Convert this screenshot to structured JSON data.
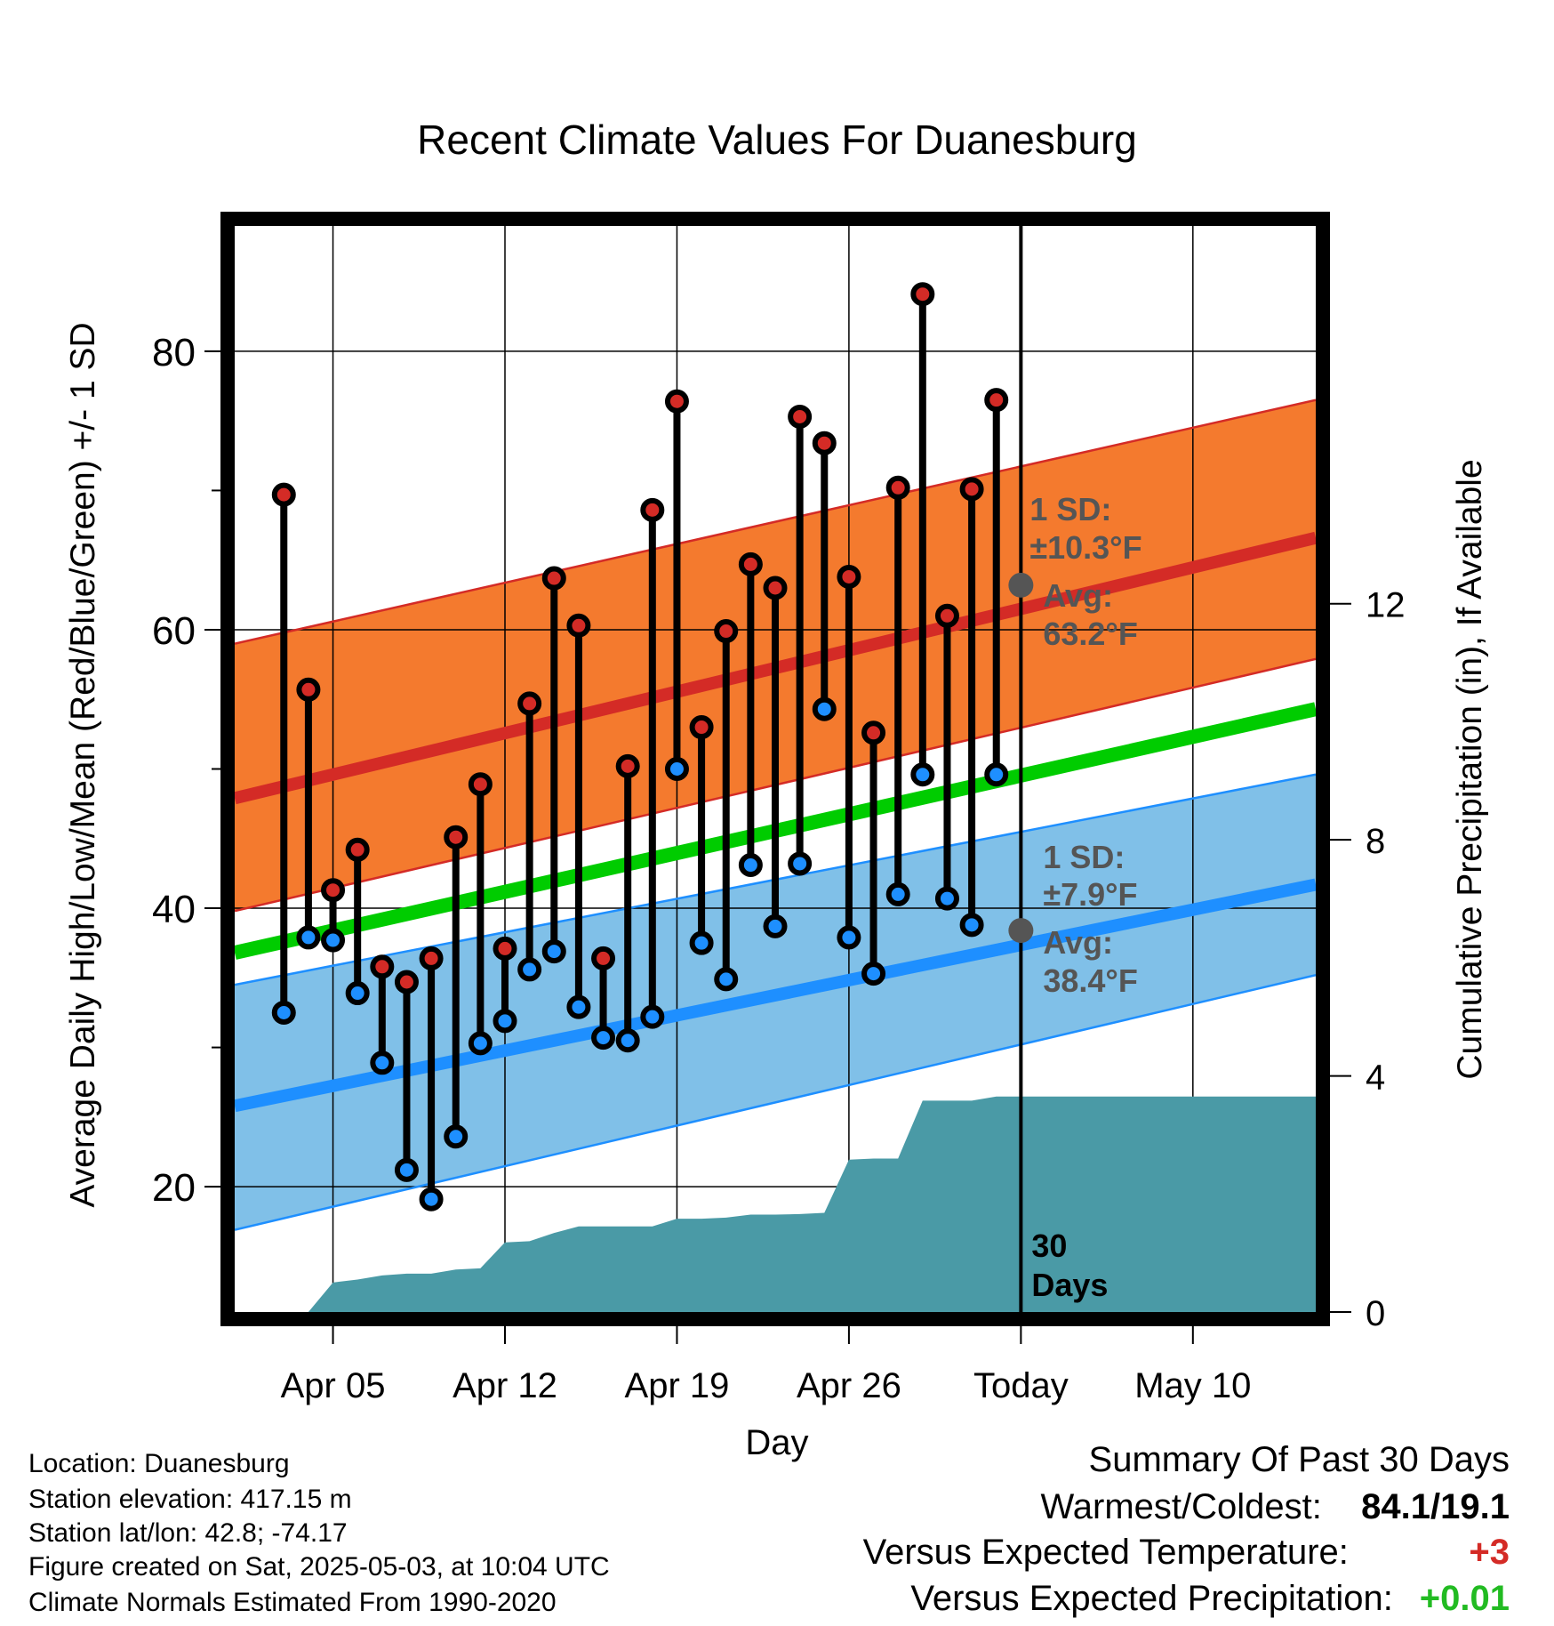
{
  "chart_data": {
    "type": "line",
    "title": "Recent Climate Values For Duanesburg",
    "xlabel": "Day",
    "ylabel_left": "Average Daily High/Low/Mean (Red/Blue/Green) +/- 1 SD",
    "ylabel_right": "Cumulative Precipitation (in), If Available",
    "x_range": [
      "2025-04-01",
      "2025-05-15"
    ],
    "ylim_left": [
      11,
      89
    ],
    "ylim_right": [
      0,
      18.4
    ],
    "x_ticks": [
      {
        "date": "2025-04-05",
        "label": "Apr 05"
      },
      {
        "date": "2025-04-12",
        "label": "Apr 12"
      },
      {
        "date": "2025-04-19",
        "label": "Apr 19"
      },
      {
        "date": "2025-04-26",
        "label": "Apr 26"
      },
      {
        "date": "2025-05-03",
        "label": "Today"
      },
      {
        "date": "2025-05-10",
        "label": "May 10"
      }
    ],
    "y_left_ticks": [
      20,
      40,
      60,
      80
    ],
    "y_left_minor_ticks": [
      30,
      50,
      70
    ],
    "y_right_ticks": [
      0,
      4,
      8,
      12
    ],
    "grid": true,
    "dates": [
      "2025-04-03",
      "2025-04-04",
      "2025-04-05",
      "2025-04-06",
      "2025-04-07",
      "2025-04-08",
      "2025-04-09",
      "2025-04-10",
      "2025-04-11",
      "2025-04-12",
      "2025-04-13",
      "2025-04-14",
      "2025-04-15",
      "2025-04-16",
      "2025-04-17",
      "2025-04-18",
      "2025-04-19",
      "2025-04-20",
      "2025-04-21",
      "2025-04-22",
      "2025-04-23",
      "2025-04-24",
      "2025-04-25",
      "2025-04-26",
      "2025-04-27",
      "2025-04-28",
      "2025-04-29",
      "2025-04-30",
      "2025-05-01",
      "2025-05-02"
    ],
    "highs": [
      69.7,
      55.7,
      41.3,
      44.2,
      35.8,
      34.7,
      36.4,
      45.1,
      48.9,
      37.1,
      54.7,
      63.7,
      60.3,
      36.4,
      50.2,
      68.6,
      76.4,
      53.0,
      59.9,
      64.7,
      63.0,
      75.3,
      73.4,
      63.8,
      52.6,
      70.2,
      84.1,
      61.0,
      70.1,
      76.5
    ],
    "lows": [
      32.5,
      37.9,
      37.7,
      33.9,
      28.9,
      21.2,
      19.1,
      23.6,
      30.3,
      31.9,
      35.6,
      36.9,
      32.9,
      30.7,
      30.5,
      32.2,
      50.0,
      37.5,
      34.9,
      43.1,
      38.7,
      43.2,
      54.3,
      37.9,
      35.3,
      41.0,
      49.6,
      40.7,
      38.8,
      49.6
    ],
    "high_markers": [
      "red",
      "red",
      "red",
      "red",
      "red",
      "red",
      "red",
      "red",
      "red",
      "red",
      "red",
      "red",
      "red",
      "red",
      "red",
      "red",
      "red",
      "red",
      "red",
      "red",
      "red",
      "red",
      "red",
      "red",
      "red",
      "red",
      "red",
      "red",
      "red",
      "red"
    ],
    "low_markers": [
      "blue",
      "blue",
      "blue",
      "blue",
      "blue",
      "blue",
      "blue",
      "blue",
      "blue",
      "blue",
      "blue",
      "blue",
      "blue",
      "blue",
      "blue",
      "blue",
      "blue",
      "blue",
      "blue",
      "blue",
      "blue",
      "blue",
      "blue",
      "blue",
      "blue",
      "blue",
      "blue",
      "blue",
      "blue",
      "blue"
    ],
    "normals": {
      "dates": [
        "2025-04-01",
        "2025-05-15"
      ],
      "high_avg": [
        47.9,
        66.6
      ],
      "high_upper": [
        59.0,
        76.5
      ],
      "high_lower": [
        39.8,
        57.9
      ],
      "mean_avg": [
        36.8,
        54.3
      ],
      "low_avg": [
        25.8,
        41.7
      ],
      "low_upper": [
        34.5,
        49.6
      ],
      "low_lower": [
        16.9,
        35.2
      ]
    },
    "precip_cumulative": {
      "dates": [
        "2025-04-01",
        "2025-04-04",
        "2025-04-05",
        "2025-04-06",
        "2025-04-07",
        "2025-04-08",
        "2025-04-09",
        "2025-04-10",
        "2025-04-11",
        "2025-04-12",
        "2025-04-13",
        "2025-04-14",
        "2025-04-15",
        "2025-04-16",
        "2025-04-17",
        "2025-04-18",
        "2025-04-19",
        "2025-04-20",
        "2025-04-21",
        "2025-04-22",
        "2025-04-23",
        "2025-04-24",
        "2025-04-25",
        "2025-04-26",
        "2025-04-27",
        "2025-04-28",
        "2025-04-29",
        "2025-04-30",
        "2025-05-01",
        "2025-05-02",
        "2025-05-03",
        "2025-05-15"
      ],
      "values": [
        0,
        0,
        0.5,
        0.55,
        0.62,
        0.65,
        0.65,
        0.72,
        0.74,
        1.18,
        1.2,
        1.34,
        1.45,
        1.45,
        1.45,
        1.45,
        1.58,
        1.58,
        1.6,
        1.65,
        1.65,
        1.66,
        1.68,
        2.58,
        2.6,
        2.6,
        3.58,
        3.58,
        3.58,
        3.65,
        3.65,
        3.65
      ]
    },
    "annotations": {
      "high_sd_line1": "1 SD:",
      "high_sd_line2": "±10.3°F",
      "high_avg_line1": "Avg:",
      "high_avg_line2": "63.2°F",
      "low_sd_line1": "1 SD:",
      "low_sd_line2": "±7.9°F",
      "low_avg_line1": "Avg:",
      "low_avg_line2": "38.4°F",
      "today_high_avg": 63.2,
      "today_low_avg": 38.4,
      "days_line1": "30",
      "days_line2": "Days"
    },
    "colors": {
      "high_band": "#f47a2e",
      "high_line": "#d42b26",
      "mean_line": "#00cc00",
      "low_band": "#80c0e8",
      "low_line": "#1e8fff",
      "precip_fill": "#4a9aa6",
      "marker_red": "#d42b26",
      "marker_blue": "#1e8fff",
      "annotation_text": "#555555"
    }
  },
  "info": {
    "location": "Location: Duanesburg",
    "elevation": "Station elevation: 417.15 m",
    "latlon": "Station lat/lon: 42.8; -74.17",
    "created": "Figure created on Sat, 2025-05-03, at 10:04 UTC",
    "normals": "Climate Normals Estimated From 1990-2020"
  },
  "summary": {
    "title": "Summary Of Past 30 Days",
    "warm_cold_label": "Warmest/Coldest:",
    "warm_cold_value": "84.1/19.1",
    "temp_label": "Versus Expected Temperature:",
    "temp_value": "+3",
    "temp_color": "#d42b26",
    "precip_label": "Versus Expected Precipitation:",
    "precip_value": "+0.01",
    "precip_color": "#22bb22"
  }
}
